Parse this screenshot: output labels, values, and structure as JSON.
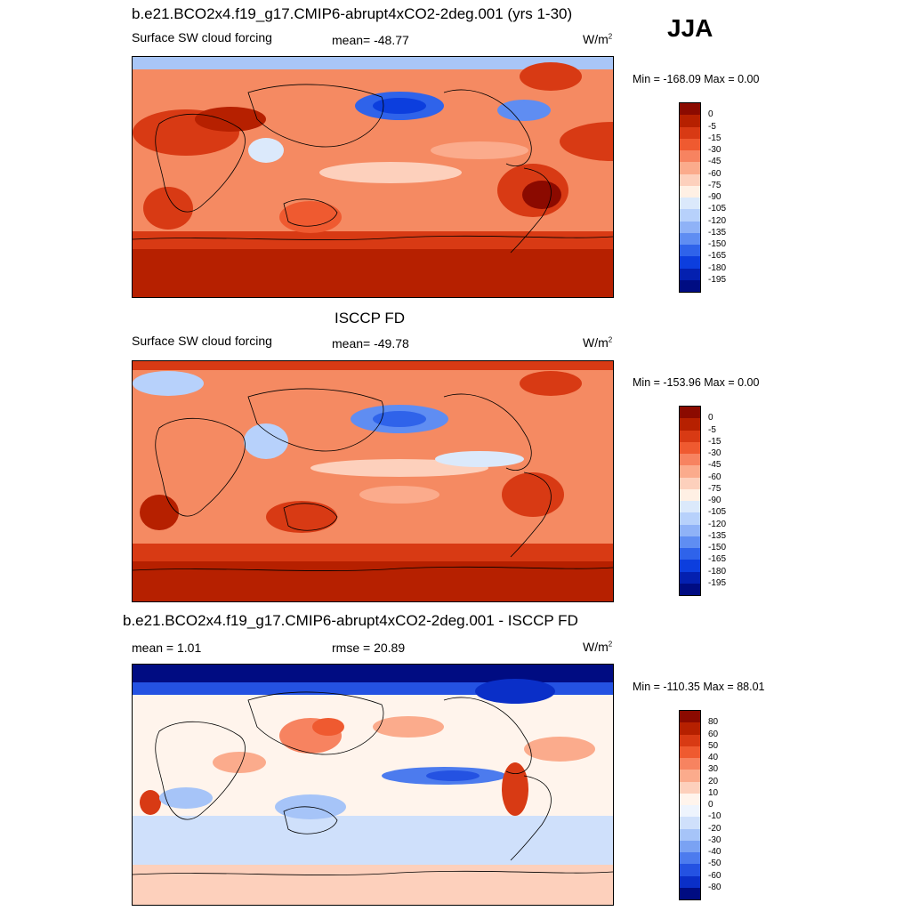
{
  "season": "JJA",
  "panels": [
    {
      "title": "b.e21.BCO2x4.f19_g17.CMIP6-abrupt4xCO2-2deg.001 (yrs 1-30)",
      "left_label": "Surface SW cloud forcing",
      "center_label": "mean= -48.77",
      "units": "W/m",
      "units_sup": "2",
      "minmax": "Min = -168.09 Max =   0.00",
      "colorbar": {
        "labels": [
          "0",
          "-5",
          "-15",
          "-30",
          "-45",
          "-60",
          "-75",
          "-90",
          "-105",
          "-120",
          "-135",
          "-150",
          "-165",
          "-180",
          "-195"
        ],
        "colors": [
          "#8b0a00",
          "#b62000",
          "#d83a14",
          "#ef5a30",
          "#f78360",
          "#fbab8c",
          "#fdd0bc",
          "#fff0e4",
          "#dbe9fb",
          "#b7d1fb",
          "#8fb2f7",
          "#5f8df2",
          "#2f63ea",
          "#0c3ede",
          "#0420b0",
          "#000c82"
        ]
      }
    },
    {
      "title": "ISCCP FD",
      "left_label": "Surface SW cloud forcing",
      "center_label": "mean= -49.78",
      "units": "W/m",
      "units_sup": "2",
      "minmax": "Min = -153.96 Max =   0.00",
      "colorbar": {
        "labels": [
          "0",
          "-5",
          "-15",
          "-30",
          "-45",
          "-60",
          "-75",
          "-90",
          "-105",
          "-120",
          "-135",
          "-150",
          "-165",
          "-180",
          "-195"
        ],
        "colors": [
          "#8b0a00",
          "#b62000",
          "#d83a14",
          "#ef5a30",
          "#f78360",
          "#fbab8c",
          "#fdd0bc",
          "#fff0e4",
          "#dbe9fb",
          "#b7d1fb",
          "#8fb2f7",
          "#5f8df2",
          "#2f63ea",
          "#0c3ede",
          "#0420b0",
          "#000c82"
        ]
      }
    },
    {
      "title": "b.e21.BCO2x4.f19_g17.CMIP6-abrupt4xCO2-2deg.001 - ISCCP FD",
      "left_label": "mean =   1.01",
      "center_label": "rmse =  20.89",
      "units": "W/m",
      "units_sup": "2",
      "minmax": "Min = -110.35 Max =  88.01",
      "colorbar": {
        "labels": [
          "80",
          "60",
          "50",
          "40",
          "30",
          "20",
          "10",
          "0",
          "-10",
          "-20",
          "-30",
          "-40",
          "-50",
          "-60",
          "-80"
        ],
        "colors": [
          "#8b0a00",
          "#b62000",
          "#d83a14",
          "#ef5a30",
          "#f78360",
          "#fbab8c",
          "#fdd0bc",
          "#fff4ec",
          "#eef4fd",
          "#cfe0fb",
          "#a6c4f8",
          "#7aa2f3",
          "#4c7bee",
          "#2452e2",
          "#0a2fc8",
          "#000c82"
        ]
      }
    }
  ]
}
